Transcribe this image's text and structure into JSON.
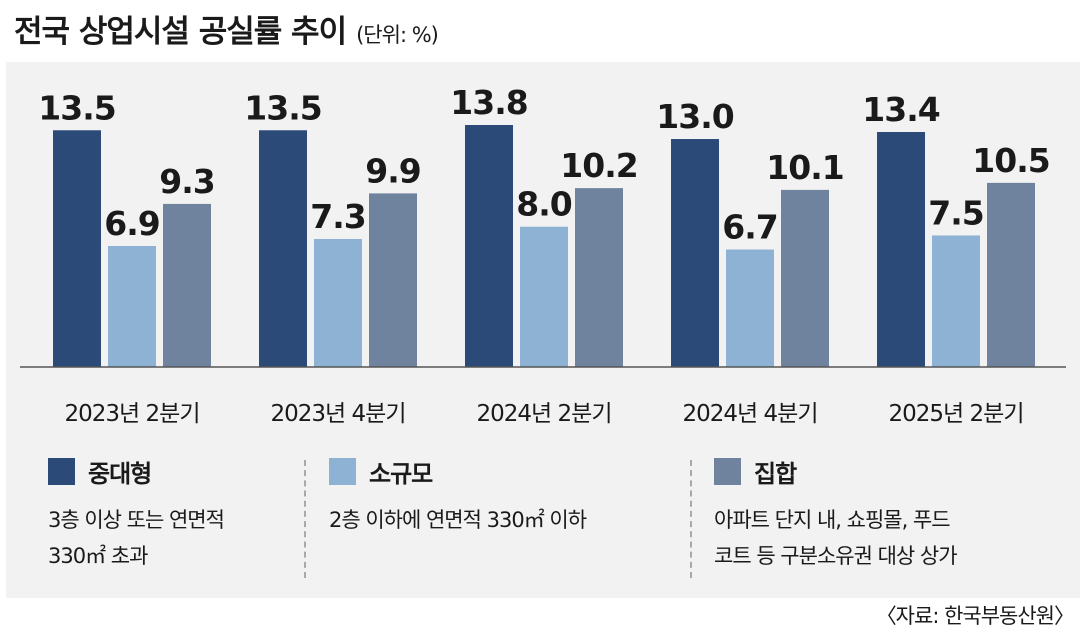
{
  "title": "전국 상업시설 공실률 추이",
  "unit": "(단위: %)",
  "source": "〈자료: 한국부동산원〉",
  "chart_data": {
    "type": "bar",
    "title": "전국 상업시설 공실률 추이",
    "unit": "%",
    "categories": [
      "2023년 2분기",
      "2023년 4분기",
      "2024년 2분기",
      "2024년 4분기",
      "2025년 2분기"
    ],
    "series": [
      {
        "name": "중대형",
        "color": "#2c4a78",
        "values": [
          13.5,
          13.5,
          13.8,
          13.0,
          13.4
        ]
      },
      {
        "name": "소규모",
        "color": "#8db2d4",
        "values": [
          6.9,
          7.3,
          8.0,
          6.7,
          7.5
        ]
      },
      {
        "name": "집합",
        "color": "#6f829e",
        "values": [
          9.3,
          9.9,
          10.2,
          10.1,
          10.5
        ]
      }
    ],
    "value_labels": [
      [
        "13.5",
        "13.5",
        "13.8",
        "13.0",
        "13.4"
      ],
      [
        "6.9",
        "7.3",
        "8.0",
        "6.7",
        "7.5"
      ],
      [
        "9.3",
        "9.9",
        "10.2",
        "10.1",
        "10.5"
      ]
    ],
    "ylim": [
      0,
      13.8
    ],
    "grid": false,
    "legend": "bottom"
  },
  "legend": [
    {
      "name": "중대형",
      "color": "#2c4a78",
      "desc": "3층 이상 또는 연면적\n330㎡ 초과"
    },
    {
      "name": "소규모",
      "color": "#8db2d4",
      "desc": "2층 이하에 연면적 330㎡ 이하"
    },
    {
      "name": "집합",
      "color": "#6f829e",
      "desc": "아파트 단지 내, 쇼핑몰, 푸드\n코트 등 구분소유권 대상 상가"
    }
  ]
}
